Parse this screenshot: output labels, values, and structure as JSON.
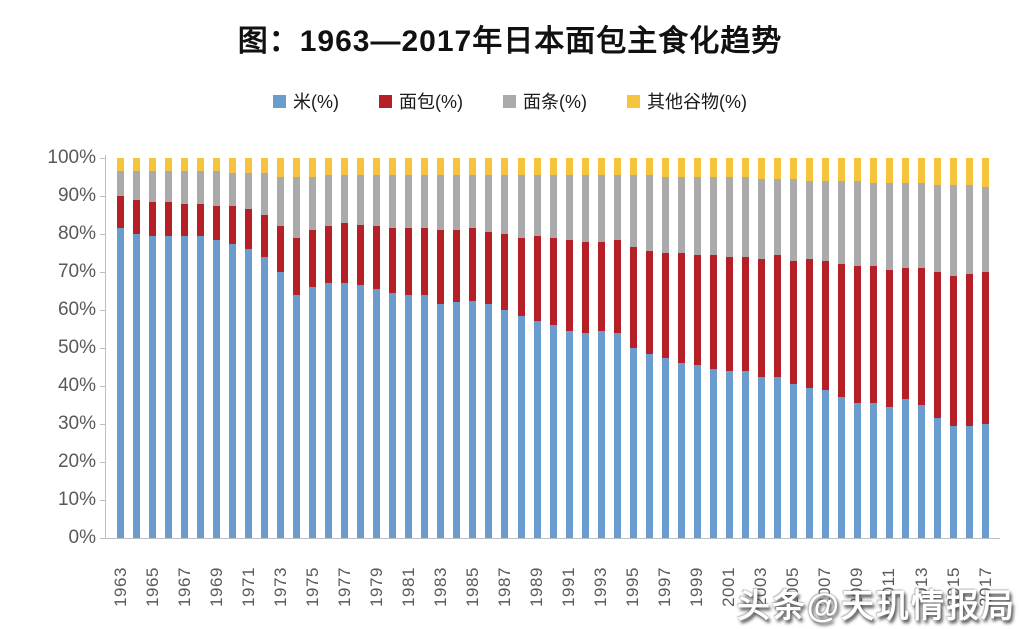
{
  "title": "图：1963—2017年日本面包主食化趋势",
  "watermark": "头条@天玑情报局",
  "y_axis_labels": [
    "0%",
    "10%",
    "20%",
    "30%",
    "40%",
    "50%",
    "60%",
    "70%",
    "80%",
    "90%",
    "100%"
  ],
  "x_axis_labels": [
    "1963",
    "1965",
    "1967",
    "1969",
    "1971",
    "1973",
    "1975",
    "1977",
    "1979",
    "1981",
    "1983",
    "1985",
    "1987",
    "1989",
    "1991",
    "1993",
    "1995",
    "1997",
    "1999",
    "2001",
    "2003",
    "2005",
    "2007",
    "2009",
    "2011",
    "2013",
    "2015",
    "2017"
  ],
  "chart_data": {
    "type": "bar",
    "stacked": true,
    "title": "图：1963—2017年日本面包主食化趋势",
    "xlabel": "",
    "ylabel": "",
    "ylim": [
      0,
      100
    ],
    "y_tick_step": 10,
    "y_tick_format": "percent",
    "grid": false,
    "legend_position": "top",
    "x_label_every": 2,
    "categories": [
      1963,
      1964,
      1965,
      1966,
      1967,
      1968,
      1969,
      1970,
      1971,
      1972,
      1973,
      1974,
      1975,
      1976,
      1977,
      1978,
      1979,
      1980,
      1981,
      1982,
      1983,
      1984,
      1985,
      1986,
      1987,
      1988,
      1989,
      1990,
      1991,
      1992,
      1993,
      1994,
      1995,
      1996,
      1997,
      1998,
      1999,
      2000,
      2001,
      2002,
      2003,
      2004,
      2005,
      2006,
      2007,
      2008,
      2009,
      2010,
      2011,
      2012,
      2013,
      2014,
      2015,
      2016,
      2017
    ],
    "series": [
      {
        "key": "rice",
        "name": "米(%)",
        "color": "#6A9CCE",
        "values": [
          81.5,
          80,
          79.5,
          79.5,
          79.5,
          79.5,
          78.5,
          77.5,
          76,
          74,
          70,
          64,
          66,
          67,
          67,
          66.5,
          65.5,
          64.5,
          64,
          64,
          61.5,
          62,
          62.5,
          61.5,
          60,
          58.5,
          57,
          56,
          54.5,
          54,
          54.5,
          54,
          50,
          48.5,
          47.5,
          46,
          45.5,
          44.5,
          44,
          44,
          42.5,
          42.5,
          40.5,
          39.5,
          39,
          37,
          35.5,
          35.5,
          34.5,
          36.5,
          35,
          31.5,
          29.5,
          29.5,
          30
        ]
      },
      {
        "key": "bread",
        "name": "面包(%)",
        "color": "#B42025",
        "values": [
          8.5,
          9,
          9,
          9,
          8.5,
          8.5,
          9,
          10,
          10.5,
          11,
          12,
          15,
          15,
          15,
          16,
          16,
          16.5,
          17,
          17.5,
          17.5,
          19.5,
          19,
          19,
          19,
          20,
          20.5,
          22.5,
          23,
          24,
          24,
          23.5,
          24.5,
          26.5,
          27,
          27.5,
          29,
          29,
          30,
          30,
          30,
          31,
          32,
          32.5,
          34,
          34,
          35,
          36,
          36,
          36,
          34.5,
          36,
          38.5,
          39.5,
          40,
          40
        ]
      },
      {
        "key": "noodles",
        "name": "面条(%)",
        "color": "#AAAAAA",
        "values": [
          6.5,
          7.5,
          8,
          8,
          8.5,
          8.5,
          9,
          8.5,
          9.5,
          11,
          13,
          16,
          14,
          13.5,
          12.5,
          13,
          13.5,
          14,
          14,
          14,
          14.5,
          14.5,
          14,
          15,
          15.5,
          16.5,
          16,
          16.5,
          17,
          17.5,
          17.5,
          17,
          19,
          20,
          20,
          20,
          20.5,
          20.5,
          21,
          21,
          21,
          20,
          21.5,
          20.5,
          21,
          22,
          22.5,
          22,
          23,
          22.5,
          22.5,
          23,
          24,
          23.5,
          22.5
        ]
      },
      {
        "key": "other_grains",
        "name": "其他谷物(%)",
        "color": "#F6C33C",
        "values": [
          3.5,
          3.5,
          3.5,
          3.5,
          3.5,
          3.5,
          3.5,
          4,
          4,
          4,
          5,
          5,
          5,
          4.5,
          4.5,
          4.5,
          4.5,
          4.5,
          4.5,
          4.5,
          4.5,
          4.5,
          4.5,
          4.5,
          4.5,
          4.5,
          4.5,
          4.5,
          4.5,
          4.5,
          4.5,
          4.5,
          4.5,
          4.5,
          5,
          5,
          5,
          5,
          5,
          5,
          5.5,
          5.5,
          5.5,
          6,
          6,
          6,
          6,
          6.5,
          6.5,
          6.5,
          6.5,
          7,
          7,
          7,
          7.5
        ]
      }
    ]
  }
}
